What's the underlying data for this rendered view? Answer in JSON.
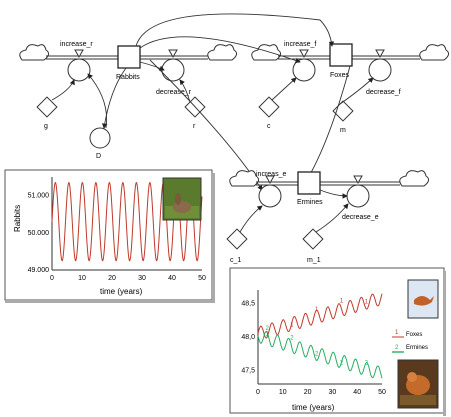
{
  "diagram": {
    "stocks": [
      {
        "id": "rabbits",
        "label": "Rabbits"
      },
      {
        "id": "foxes",
        "label": "Foxes"
      },
      {
        "id": "ermines",
        "label": "Ermines"
      }
    ],
    "flows": [
      {
        "id": "increase_r",
        "label": "increase_r"
      },
      {
        "id": "decrease_r",
        "label": "decrease_r"
      },
      {
        "id": "increase_f",
        "label": "increase_f"
      },
      {
        "id": "decrease_f",
        "label": "decrease_f"
      },
      {
        "id": "increase_e",
        "label": "increas_e"
      },
      {
        "id": "decrease_e",
        "label": "decrease_e"
      }
    ],
    "converters": [
      {
        "id": "g",
        "label": "g"
      },
      {
        "id": "D",
        "label": "D"
      },
      {
        "id": "r",
        "label": "r"
      },
      {
        "id": "c",
        "label": "c"
      },
      {
        "id": "m",
        "label": "m"
      },
      {
        "id": "c_1",
        "label": "c_1"
      },
      {
        "id": "m_1",
        "label": "m_1"
      }
    ]
  },
  "chart_data": [
    {
      "type": "line",
      "ylabel": "Rabbits",
      "xlabel": "time (years)",
      "xlim": [
        0,
        50
      ],
      "ylim": [
        49000,
        51500
      ],
      "xticks": [
        "0",
        "10",
        "20",
        "30",
        "40",
        "50"
      ],
      "yticks": [
        "49.000",
        "50.000",
        "51.000"
      ],
      "series": [
        {
          "amplitude": 1050,
          "mean": 50300,
          "period": 4.5,
          "color": "#c0392b"
        }
      ],
      "photo": "rabbit-photo"
    },
    {
      "type": "line",
      "xlabel": "time (years)",
      "xlim": [
        0,
        50
      ],
      "ylim": [
        47.3,
        48.7
      ],
      "xticks": [
        "0",
        "10",
        "20",
        "30",
        "40",
        "50"
      ],
      "yticks": [
        "47,5",
        "48,0",
        "48,5"
      ],
      "series": [
        {
          "name": "Foxes",
          "marker": "1",
          "color": "#c0392b",
          "start": 48.05,
          "end": 48.58,
          "amplitude": 0.1
        },
        {
          "name": "Ermines",
          "marker": "2",
          "color": "#27ae60",
          "start": 48.02,
          "end": 47.45,
          "amplitude": 0.1
        }
      ],
      "photos": [
        "fox-photo",
        "ermine-photo"
      ]
    }
  ]
}
